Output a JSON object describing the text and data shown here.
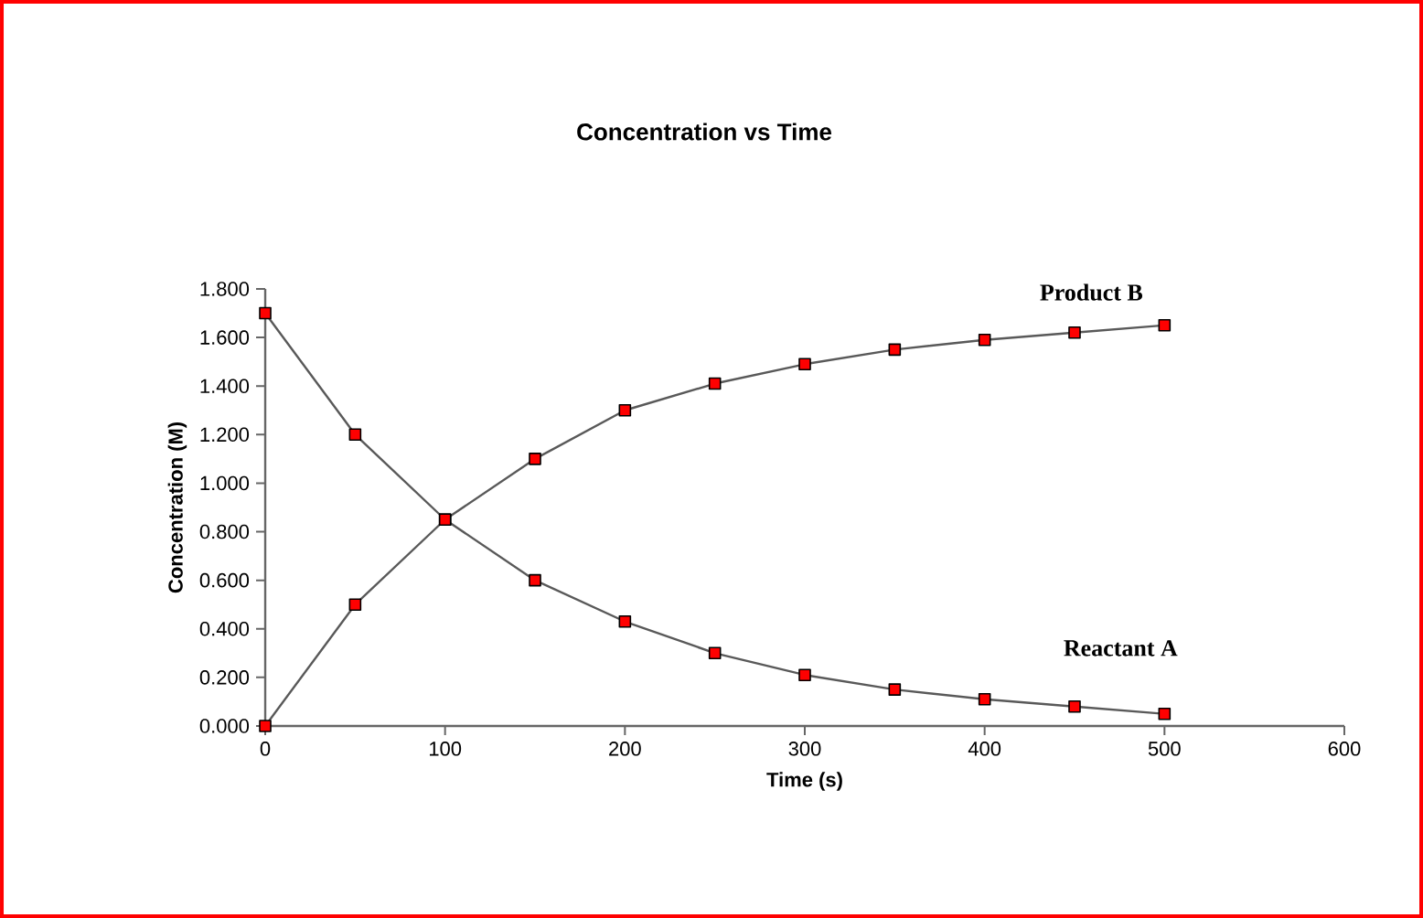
{
  "chart_data": {
    "type": "line",
    "title": "Concentration vs Time",
    "xlabel": "Time (s)",
    "ylabel": "Concentration (M)",
    "x": [
      0,
      50,
      100,
      150,
      200,
      250,
      300,
      350,
      400,
      450,
      500
    ],
    "series": [
      {
        "name": "Reactant A",
        "color": "#ff0000",
        "values": [
          1.7,
          1.2,
          0.85,
          0.6,
          0.43,
          0.3,
          0.21,
          0.15,
          0.11,
          0.08,
          0.05
        ]
      },
      {
        "name": "Product B",
        "color": "#ff0000",
        "values": [
          0,
          0.5,
          0.85,
          1.1,
          1.3,
          1.41,
          1.49,
          1.55,
          1.59,
          1.62,
          1.65
        ]
      }
    ],
    "xlim": [
      0,
      600
    ],
    "xticks": [
      0,
      100,
      200,
      300,
      400,
      500,
      600
    ],
    "ylim": [
      0,
      1.8
    ],
    "yticks": [
      {
        "value": 0,
        "label": "0.000"
      },
      {
        "value": 0.2,
        "label": "0.200"
      },
      {
        "value": 0.4,
        "label": "0.400"
      },
      {
        "value": 0.6,
        "label": "0.600"
      },
      {
        "value": 0.8,
        "label": "0.800"
      },
      {
        "value": 1.0,
        "label": "1.000"
      },
      {
        "value": 1.2,
        "label": "1.200"
      },
      {
        "value": 1.4,
        "label": "1.400"
      },
      {
        "value": 1.6,
        "label": "1.600"
      },
      {
        "value": 1.8,
        "label": "1.800"
      }
    ],
    "grid": false,
    "marker": "square",
    "line_style": "solid"
  }
}
